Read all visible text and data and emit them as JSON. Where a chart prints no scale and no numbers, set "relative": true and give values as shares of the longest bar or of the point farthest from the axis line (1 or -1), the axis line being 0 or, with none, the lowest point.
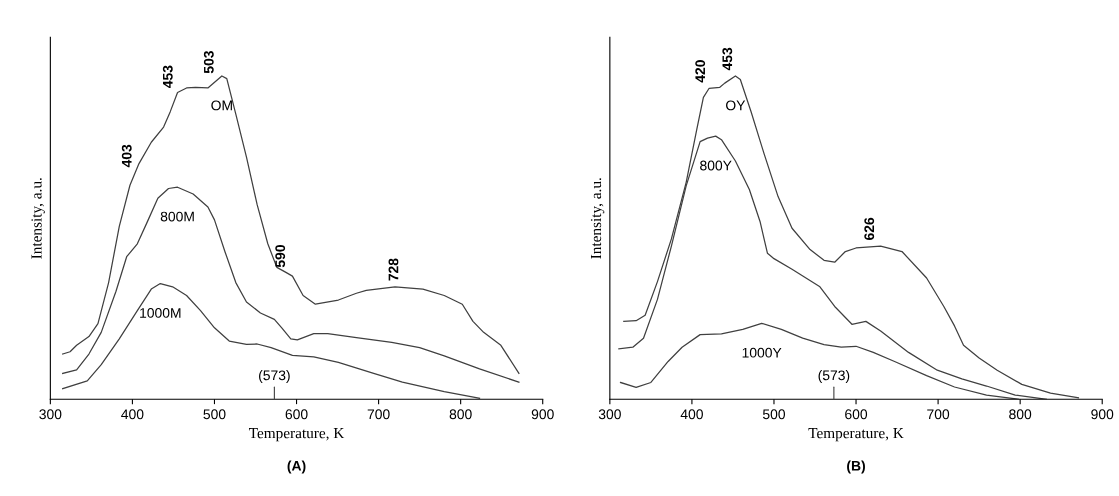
{
  "chart_data": [
    {
      "type": "line",
      "title": "(A)",
      "xlabel": "Temperature, K",
      "ylabel": "Intensity, a.u.",
      "relative": true,
      "xlim": [
        300,
        900
      ],
      "xticks": [
        300,
        400,
        500,
        600,
        700,
        800,
        900
      ],
      "grid": false,
      "legend": false,
      "marker": "none",
      "line_style": "solid",
      "series": [
        {
          "name": "OM",
          "color": "#404040",
          "x": [
            315,
            324,
            332,
            347,
            358,
            371,
            384,
            397,
            408,
            423,
            438,
            446,
            455,
            466,
            477,
            492,
            498,
            509,
            515,
            526,
            539,
            552,
            565,
            576,
            586,
            595,
            608,
            623,
            651,
            673,
            685,
            720,
            754,
            780,
            802,
            815,
            828,
            849,
            871
          ],
          "values": [
            0.14,
            0.147,
            0.167,
            0.194,
            0.234,
            0.361,
            0.535,
            0.662,
            0.729,
            0.795,
            0.842,
            0.889,
            0.949,
            0.963,
            0.965,
            0.963,
            0.976,
            1.0,
            0.992,
            0.882,
            0.749,
            0.602,
            0.481,
            0.408,
            0.394,
            0.381,
            0.321,
            0.294,
            0.307,
            0.328,
            0.337,
            0.348,
            0.341,
            0.321,
            0.294,
            0.241,
            0.207,
            0.167,
            0.08
          ]
        },
        {
          "name": "800M",
          "color": "#404040",
          "x": [
            315,
            332,
            347,
            362,
            380,
            393,
            406,
            418,
            431,
            444,
            455,
            474,
            492,
            500,
            513,
            526,
            539,
            556,
            573,
            582,
            593,
            601,
            621,
            638,
            673,
            716,
            750,
            780,
            823,
            871
          ],
          "values": [
            0.08,
            0.091,
            0.14,
            0.207,
            0.334,
            0.441,
            0.481,
            0.548,
            0.622,
            0.652,
            0.656,
            0.635,
            0.595,
            0.555,
            0.455,
            0.361,
            0.301,
            0.267,
            0.247,
            0.221,
            0.187,
            0.184,
            0.203,
            0.203,
            0.191,
            0.176,
            0.16,
            0.134,
            0.094,
            0.053
          ]
        },
        {
          "name": "1000M",
          "color": "#404040",
          "x": [
            315,
            345,
            362,
            384,
            406,
            423,
            434,
            449,
            466,
            483,
            500,
            518,
            539,
            552,
            569,
            595,
            621,
            651,
            694,
            729,
            780,
            823
          ],
          "values": [
            0.033,
            0.057,
            0.107,
            0.187,
            0.274,
            0.341,
            0.358,
            0.348,
            0.321,
            0.274,
            0.221,
            0.18,
            0.17,
            0.171,
            0.16,
            0.136,
            0.131,
            0.114,
            0.08,
            0.053,
            0.024,
            0.003
          ]
        }
      ],
      "annotations": [
        {
          "text": "403",
          "x": 403,
          "y": 0.7
        },
        {
          "text": "453",
          "x": 453,
          "y": 0.945
        },
        {
          "text": "503",
          "x": 503,
          "y": 0.99
        },
        {
          "text": "590",
          "x": 590,
          "y": 0.39
        },
        {
          "text": "728",
          "x": 728,
          "y": 0.348
        },
        "(573)"
      ]
    },
    {
      "type": "line",
      "title": "(B)",
      "xlabel": "Temperature, K",
      "ylabel": "Intensity, a.u.",
      "relative": true,
      "xlim": [
        300,
        900
      ],
      "xticks": [
        300,
        400,
        500,
        600,
        700,
        800,
        900
      ],
      "grid": false,
      "legend": false,
      "marker": "none",
      "line_style": "solid",
      "series": [
        {
          "name": "OY",
          "color": "#404040",
          "x": [
            317,
            332,
            343,
            358,
            375,
            393,
            406,
            414,
            421,
            434,
            440,
            453,
            459,
            472,
            488,
            505,
            522,
            544,
            561,
            574,
            587,
            600,
            630,
            656,
            686,
            707,
            720,
            731,
            750,
            772,
            802,
            837,
            871
          ],
          "values": [
            0.241,
            0.243,
            0.26,
            0.364,
            0.496,
            0.671,
            0.836,
            0.934,
            0.962,
            0.965,
            0.978,
            1.0,
            0.989,
            0.89,
            0.759,
            0.627,
            0.529,
            0.463,
            0.43,
            0.424,
            0.457,
            0.468,
            0.474,
            0.457,
            0.375,
            0.287,
            0.227,
            0.167,
            0.128,
            0.09,
            0.046,
            0.019,
            0.005
          ]
        },
        {
          "name": "800Y",
          "color": "#404040",
          "x": [
            311,
            328,
            341,
            358,
            375,
            393,
            410,
            419,
            429,
            436,
            453,
            470,
            483,
            492,
            500,
            522,
            556,
            574,
            595,
            612,
            630,
            664,
            699,
            729,
            759,
            794,
            832
          ],
          "values": [
            0.156,
            0.161,
            0.189,
            0.309,
            0.474,
            0.66,
            0.797,
            0.808,
            0.814,
            0.803,
            0.737,
            0.649,
            0.55,
            0.452,
            0.435,
            0.402,
            0.348,
            0.287,
            0.232,
            0.241,
            0.211,
            0.145,
            0.09,
            0.063,
            0.041,
            0.013,
            0.0
          ]
        },
        {
          "name": "1000Y",
          "color": "#404040",
          "x": [
            313,
            332,
            350,
            371,
            388,
            410,
            436,
            462,
            485,
            509,
            535,
            561,
            582,
            600,
            621,
            647,
            686,
            720,
            759,
            798
          ],
          "values": [
            0.052,
            0.037,
            0.052,
            0.117,
            0.161,
            0.2,
            0.202,
            0.216,
            0.235,
            0.216,
            0.189,
            0.169,
            0.161,
            0.164,
            0.145,
            0.117,
            0.073,
            0.038,
            0.013,
            0.0
          ]
        }
      ],
      "annotations": [
        {
          "text": "420",
          "x": 420,
          "y": 0.962
        },
        {
          "text": "453",
          "x": 453,
          "y": 1.0
        },
        {
          "text": "626",
          "x": 626,
          "y": 0.474
        },
        "(573)"
      ]
    }
  ]
}
